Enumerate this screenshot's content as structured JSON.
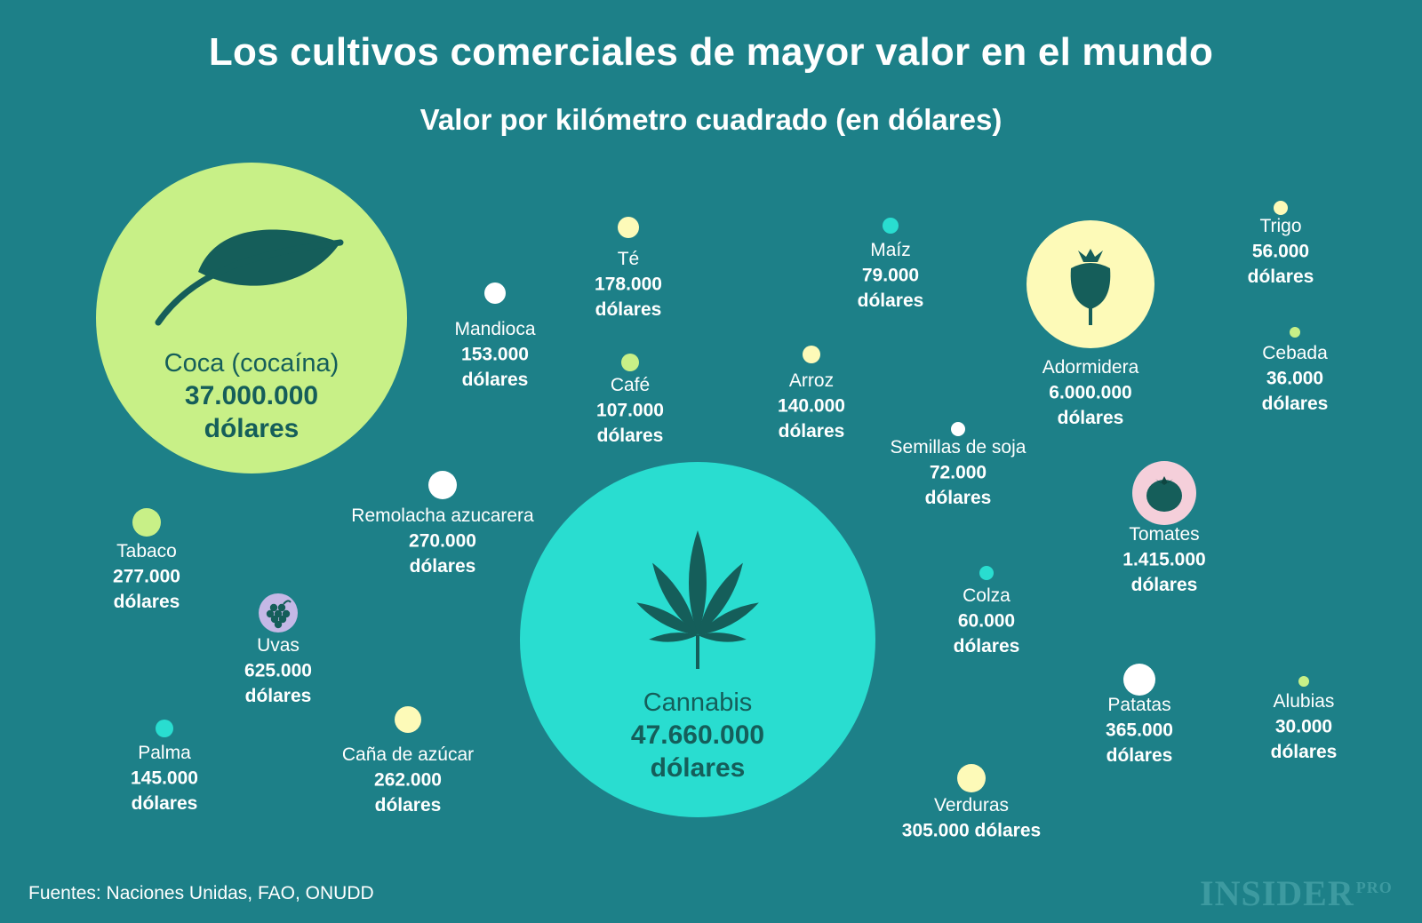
{
  "title": "Los cultivos comerciales de mayor valor en el mundo",
  "source": "Fuentes: Naciones Unidas, FAO, ONUDD",
  "logo": {
    "main": "INSIDER",
    "suffix": "PRO"
  },
  "colors": {
    "background": "#1d8088",
    "lime": "#c8f087",
    "cyan": "#29ddd0",
    "cream": "#fdfab8",
    "white": "#ffffff",
    "pink": "#f5cfda",
    "lavender": "#c5b8e6",
    "icon": "#155e5a"
  },
  "chart_data": {
    "type": "bubble",
    "title": "",
    "subtitle": "Valor por kilómetro cuadrado (en dólares)",
    "unit": "dólares",
    "items": [
      {
        "name": "Cannabis",
        "label": "47.660.000 dólares",
        "value": 47660000,
        "color": "cyan",
        "icon": "cannabis-leaf-icon"
      },
      {
        "name": "Coca (cocaína)",
        "label": "37.000.000 dólares",
        "value": 37000000,
        "color": "lime",
        "icon": "leaf-icon"
      },
      {
        "name": "Adormidera",
        "label": "6.000.000 dólares",
        "value": 6000000,
        "color": "cream",
        "icon": "poppy-icon"
      },
      {
        "name": "Tomates",
        "label": "1.415.000 dólares",
        "value": 1415000,
        "color": "pink",
        "icon": "tomato-icon"
      },
      {
        "name": "Uvas",
        "label": "625.000 dólares",
        "value": 625000,
        "color": "lavender",
        "icon": "grapes-icon"
      },
      {
        "name": "Patatas",
        "label": "365.000 dólares",
        "value": 365000,
        "color": "white"
      },
      {
        "name": "Verduras",
        "label": "305.000 dólares",
        "value": 305000,
        "color": "cream"
      },
      {
        "name": "Tabaco",
        "label": "277.000 dólares",
        "value": 277000,
        "color": "lime"
      },
      {
        "name": "Remolacha azucarera",
        "label": "270.000 dólares",
        "value": 270000,
        "color": "white"
      },
      {
        "name": "Caña de azúcar",
        "label": "262.000 dólares",
        "value": 262000,
        "color": "cream"
      },
      {
        "name": "Té",
        "label": "178.000 dólares",
        "value": 178000,
        "color": "cream"
      },
      {
        "name": "Mandioca",
        "label": "153.000 dólares",
        "value": 153000,
        "color": "white"
      },
      {
        "name": "Palma",
        "label": "145.000 dólares",
        "value": 145000,
        "color": "cyan"
      },
      {
        "name": "Arroz",
        "label": "140.000 dólares",
        "value": 140000,
        "color": "cream"
      },
      {
        "name": "Café",
        "label": "107.000 dólares",
        "value": 107000,
        "color": "lime"
      },
      {
        "name": "Maíz",
        "label": "79.000 dólares",
        "value": 79000,
        "color": "cyan"
      },
      {
        "name": "Semillas de soja",
        "label": "72.000 dólares",
        "value": 72000,
        "color": "white"
      },
      {
        "name": "Colza",
        "label": "60.000 dólares",
        "value": 60000,
        "color": "cyan"
      },
      {
        "name": "Trigo",
        "label": "56.000 dólares",
        "value": 56000,
        "color": "cream"
      },
      {
        "name": "Cebada",
        "label": "36.000 dólares",
        "value": 36000,
        "color": "lime"
      },
      {
        "name": "Alubias",
        "label": "30.000 dólares",
        "value": 30000,
        "color": "lime"
      }
    ]
  }
}
